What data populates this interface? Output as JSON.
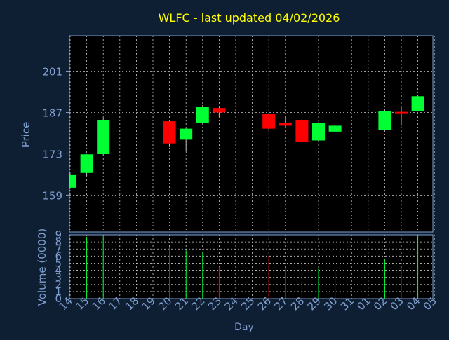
{
  "colors": {
    "background": "#0f1f33",
    "plot_background": "#000000",
    "title": "#ffff00",
    "axis_text": "#7f9fcf",
    "frame": "#7f9fcf",
    "grid": "#c8c8c8",
    "up": "#00ff33",
    "down": "#ff0000",
    "wick": "#c0c0c0"
  },
  "chart_data": [
    {
      "type": "candlestick",
      "title": "WLFC - last updated 04/02/2026",
      "ylabel": "Price",
      "ylim": [
        146.5,
        213
      ],
      "yticks": [
        159,
        173,
        187,
        201
      ],
      "grid": true,
      "categories": [
        "14",
        "15",
        "16",
        "17",
        "18",
        "19",
        "20",
        "21",
        "22",
        "23",
        "24",
        "25",
        "26",
        "27",
        "28",
        "29",
        "30",
        "31",
        "01",
        "02",
        "03",
        "04",
        "05"
      ],
      "candles": [
        {
          "day": "14",
          "open": 161.5,
          "close": 166.0,
          "high": 166.2,
          "low": 161.3
        },
        {
          "day": "15",
          "open": 166.5,
          "close": 172.8,
          "high": 173.0,
          "low": 165.5
        },
        {
          "day": "16",
          "open": 173.0,
          "close": 184.5,
          "high": 185.0,
          "low": 172.5
        },
        {
          "day": "20",
          "open": 184.0,
          "close": 176.5,
          "high": 184.2,
          "low": 175.5
        },
        {
          "day": "21",
          "open": 178.0,
          "close": 181.5,
          "high": 181.7,
          "low": 174.0
        },
        {
          "day": "22",
          "open": 183.5,
          "close": 189.0,
          "high": 189.5,
          "low": 183.2
        },
        {
          "day": "23",
          "open": 188.5,
          "close": 187.0,
          "high": 189.0,
          "low": 185.5
        },
        {
          "day": "26",
          "open": 186.5,
          "close": 181.5,
          "high": 186.7,
          "low": 181.2
        },
        {
          "day": "27",
          "open": 183.5,
          "close": 182.5,
          "high": 185.5,
          "low": 182.2
        },
        {
          "day": "28",
          "open": 184.5,
          "close": 177.0,
          "high": 184.7,
          "low": 176.8
        },
        {
          "day": "29",
          "open": 177.5,
          "close": 183.5,
          "high": 183.7,
          "low": 177.3
        },
        {
          "day": "30",
          "open": 180.5,
          "close": 182.5,
          "high": 182.7,
          "low": 180.3
        },
        {
          "day": "02",
          "open": 181.0,
          "close": 187.5,
          "high": 187.8,
          "low": 180.8
        },
        {
          "day": "03",
          "open": 187.2,
          "close": 186.8,
          "high": 189.0,
          "low": 182.5
        },
        {
          "day": "04",
          "open": 187.5,
          "close": 192.5,
          "high": 192.7,
          "low": 187.3
        }
      ]
    },
    {
      "type": "bar",
      "xlabel": "Day",
      "ylabel": "Volume (0000)",
      "ylim": [
        0,
        9
      ],
      "yticks": [
        0,
        1,
        2,
        3,
        4,
        5,
        6,
        7,
        8,
        9
      ],
      "grid": true,
      "categories": [
        "14",
        "15",
        "16",
        "17",
        "18",
        "19",
        "20",
        "21",
        "22",
        "23",
        "24",
        "25",
        "26",
        "27",
        "28",
        "29",
        "30",
        "31",
        "01",
        "02",
        "03",
        "04",
        "05"
      ],
      "bars": [
        {
          "day": "15",
          "value": 8.7,
          "direction": "up"
        },
        {
          "day": "16",
          "value": 8.9,
          "direction": "up"
        },
        {
          "day": "20",
          "value": 7.3,
          "direction": "down"
        },
        {
          "day": "21",
          "value": 6.8,
          "direction": "up"
        },
        {
          "day": "22",
          "value": 6.5,
          "direction": "up"
        },
        {
          "day": "23",
          "value": 4.5,
          "direction": "down"
        },
        {
          "day": "26",
          "value": 6.0,
          "direction": "down"
        },
        {
          "day": "27",
          "value": 4.2,
          "direction": "down"
        },
        {
          "day": "28",
          "value": 5.2,
          "direction": "down"
        },
        {
          "day": "29",
          "value": 4.2,
          "direction": "up"
        },
        {
          "day": "30",
          "value": 3.8,
          "direction": "up"
        },
        {
          "day": "02",
          "value": 5.5,
          "direction": "up"
        },
        {
          "day": "03",
          "value": 4.2,
          "direction": "down"
        },
        {
          "day": "04",
          "value": 9.0,
          "direction": "up"
        }
      ]
    }
  ]
}
